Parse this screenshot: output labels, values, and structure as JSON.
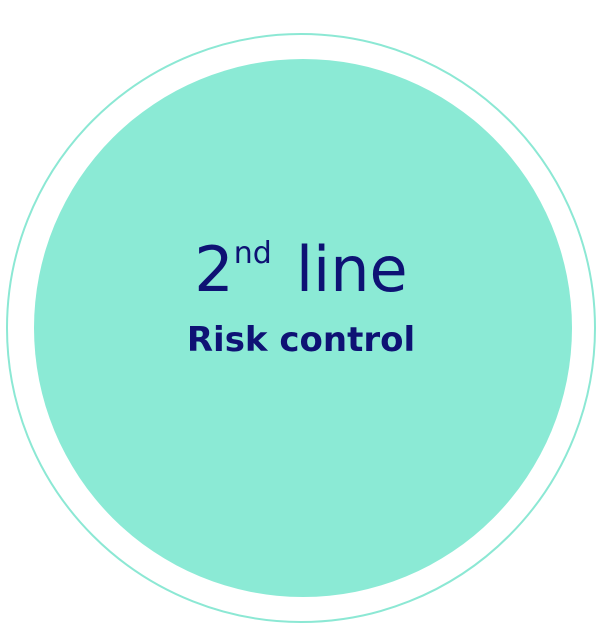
{
  "circle": {
    "number": "2",
    "ordinal_suffix": "nd",
    "word": "line",
    "subtitle": "Risk control"
  },
  "colors": {
    "ring_border": "#8ce8d4",
    "disc_fill": "#8bead5",
    "text": "#0e1274",
    "background": "#ffffff"
  }
}
